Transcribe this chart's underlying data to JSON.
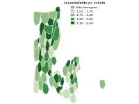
{
  "legend_title": "Levendefødte pr. kvinde",
  "legend_entries": [
    {
      "label": "Ikke beregnet",
      "color": "#b5ada6"
    },
    {
      "label": "1,52 - 1,75",
      "color": "#cce0be"
    },
    {
      "label": "1,75 - 1,90",
      "color": "#92bc84"
    },
    {
      "label": "1,90 - 2,09",
      "color": "#3d8c4a"
    },
    {
      "label": "2,10 - 2,44",
      "color": "#1a5c25"
    }
  ],
  "background_color": "#ffffff",
  "lon_min": 8.0,
  "lon_max": 15.3,
  "lat_min": 54.5,
  "lat_max": 57.95
}
